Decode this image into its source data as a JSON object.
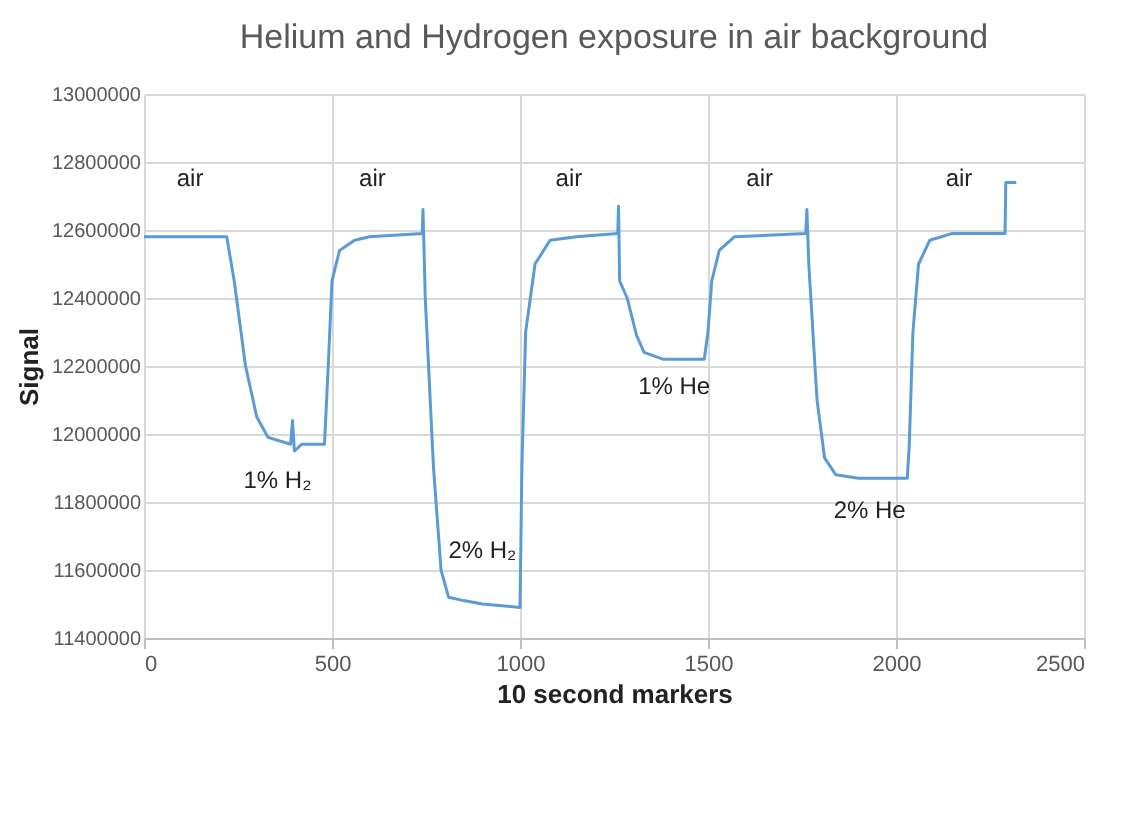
{
  "chart_data": {
    "type": "line",
    "title": "Helium and Hydrogen exposure in air background",
    "xlabel": "10 second markers",
    "ylabel": "Signal",
    "x": [
      0,
      220,
      240,
      270,
      300,
      330,
      390,
      395,
      400,
      420,
      480,
      490,
      500,
      520,
      560,
      600,
      740,
      742,
      748,
      770,
      790,
      810,
      850,
      900,
      1000,
      1005,
      1015,
      1040,
      1080,
      1150,
      1260,
      1262,
      1265,
      1285,
      1310,
      1330,
      1380,
      1490,
      1500,
      1510,
      1530,
      1570,
      1760,
      1763,
      1768,
      1790,
      1810,
      1840,
      1900,
      2030,
      2035,
      2045,
      2060,
      2090,
      2150,
      2290,
      2292,
      2320
    ],
    "series": [
      {
        "color": "#5b9bd5",
        "values": [
          12580000,
          12580000,
          12450000,
          12200000,
          12050000,
          11990000,
          11970000,
          12040000,
          11950000,
          11970000,
          11970000,
          12200000,
          12450000,
          12540000,
          12570000,
          12580000,
          12590000,
          12660000,
          12400000,
          11900000,
          11600000,
          11520000,
          11510000,
          11500000,
          11490000,
          11900000,
          12300000,
          12500000,
          12570000,
          12580000,
          12590000,
          12670000,
          12450000,
          12400000,
          12290000,
          12240000,
          12220000,
          12220000,
          12300000,
          12450000,
          12540000,
          12580000,
          12590000,
          12660000,
          12500000,
          12100000,
          11930000,
          11880000,
          11870000,
          11870000,
          11960000,
          12300000,
          12500000,
          12570000,
          12590000,
          12590000,
          12740000,
          12740000
        ]
      }
    ],
    "xlim": [
      0,
      2500
    ],
    "xticks": [
      0,
      500,
      1000,
      1500,
      2000,
      2500
    ],
    "ylim": [
      11400000,
      13000000
    ],
    "yticks": [
      11400000,
      11600000,
      11800000,
      12000000,
      12200000,
      12400000,
      12600000,
      12800000,
      13000000
    ],
    "grid": true,
    "marker": "none",
    "line_style": "solid",
    "annotations": [
      "air",
      "air",
      "air",
      "air",
      "air",
      "1% H₂",
      "2% H₂",
      "1% He",
      "2% He"
    ]
  }
}
